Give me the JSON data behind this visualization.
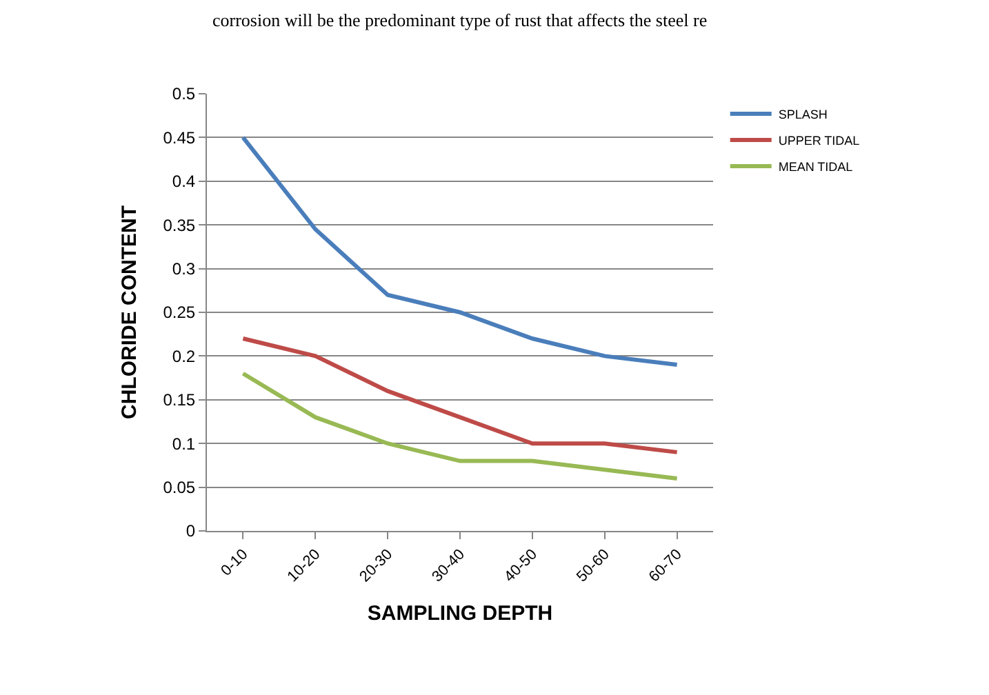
{
  "chart_data": {
    "type": "line",
    "xlabel": "SAMPLING DEPTH",
    "ylabel": "CHLORIDE CONTENT",
    "annotations": [
      "corrosion will be the predominant type of rust that affects the steel re"
    ],
    "categories": [
      "0-10",
      "10-20",
      "20-30",
      "30-40",
      "40-50",
      "50-60",
      "60-70"
    ],
    "series": [
      {
        "name": "SPLASH",
        "color": "#4a7ebb",
        "values": [
          0.45,
          0.345,
          0.27,
          0.25,
          0.22,
          0.2,
          0.19
        ]
      },
      {
        "name": "UPPER TIDAL",
        "color": "#be4b48",
        "values": [
          0.22,
          0.2,
          0.16,
          0.13,
          0.1,
          0.1,
          0.09
        ]
      },
      {
        "name": "MEAN TIDAL",
        "color": "#98b954",
        "values": [
          0.18,
          0.13,
          0.1,
          0.08,
          0.08,
          0.07,
          0.06
        ]
      }
    ],
    "ylim": [
      0,
      0.5
    ],
    "yticks": [
      0,
      0.05,
      0.1,
      0.15,
      0.2,
      0.25,
      0.3,
      0.35,
      0.4,
      0.45,
      0.5
    ],
    "grid": "y",
    "legend": "top right",
    "marker": "none",
    "line_style": "solid"
  }
}
